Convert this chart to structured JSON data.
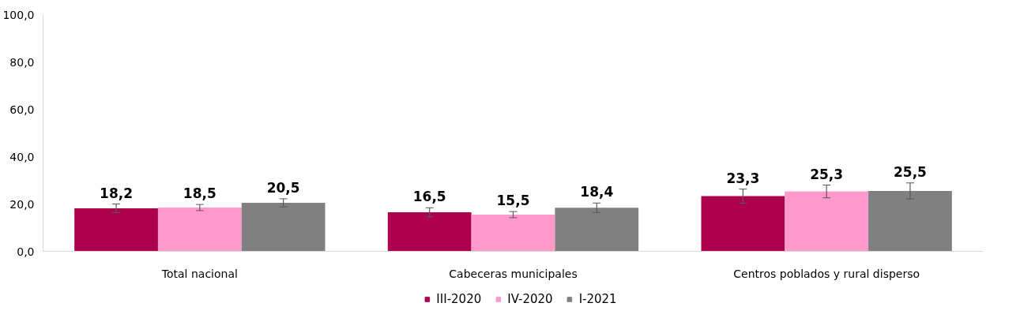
{
  "chart_data": {
    "type": "bar",
    "categories": [
      "Total nacional",
      "Cabeceras municipales",
      "Centros poblados y rural disperso"
    ],
    "series": [
      {
        "name": "III-2020",
        "color": "#ad004f",
        "values": [
          18.2,
          16.5,
          23.3
        ],
        "errors": [
          1.8,
          1.9,
          3.0
        ],
        "value_labels": [
          "18,2",
          "16,5",
          "23,3"
        ]
      },
      {
        "name": "IV-2020",
        "color": "#ff99cc",
        "values": [
          18.5,
          15.5,
          25.3
        ],
        "errors": [
          1.3,
          1.3,
          2.7
        ],
        "value_labels": [
          "18,5",
          "15,5",
          "25,3"
        ]
      },
      {
        "name": "I-2021",
        "color": "#808080",
        "values": [
          20.5,
          18.4,
          25.5
        ],
        "errors": [
          1.7,
          2.0,
          3.4
        ],
        "value_labels": [
          "20,5",
          "18,4",
          "25,5"
        ]
      }
    ],
    "ylim": [
      0,
      100
    ],
    "yticks": [
      {
        "value": 0,
        "label": "0,0"
      },
      {
        "value": 20,
        "label": "20,0"
      },
      {
        "value": 40,
        "label": "40,0"
      },
      {
        "value": 60,
        "label": "60,0"
      },
      {
        "value": 80,
        "label": "80,0"
      },
      {
        "value": 100,
        "label": "100,0"
      }
    ],
    "grid": false,
    "legend": "bottom"
  }
}
